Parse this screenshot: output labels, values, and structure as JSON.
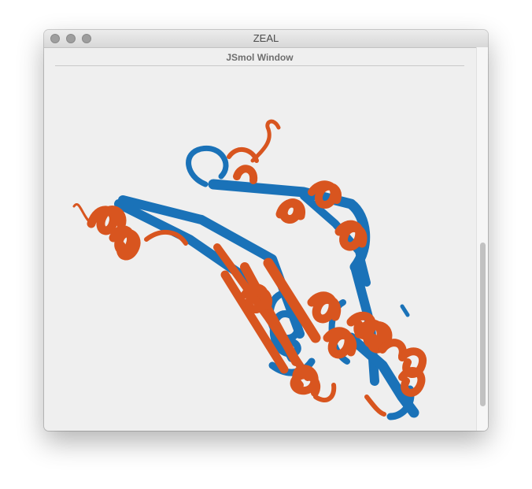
{
  "window": {
    "title": "ZEAL"
  },
  "panel": {
    "title": "JSmol Window"
  },
  "viewer": {
    "content": "protein-superposition-cartoon",
    "colors": {
      "structure_a": "#1a72b8",
      "structure_b": "#d8551f"
    }
  },
  "scrollbar": {
    "visible_fraction": 0.43,
    "position": "bottom"
  }
}
